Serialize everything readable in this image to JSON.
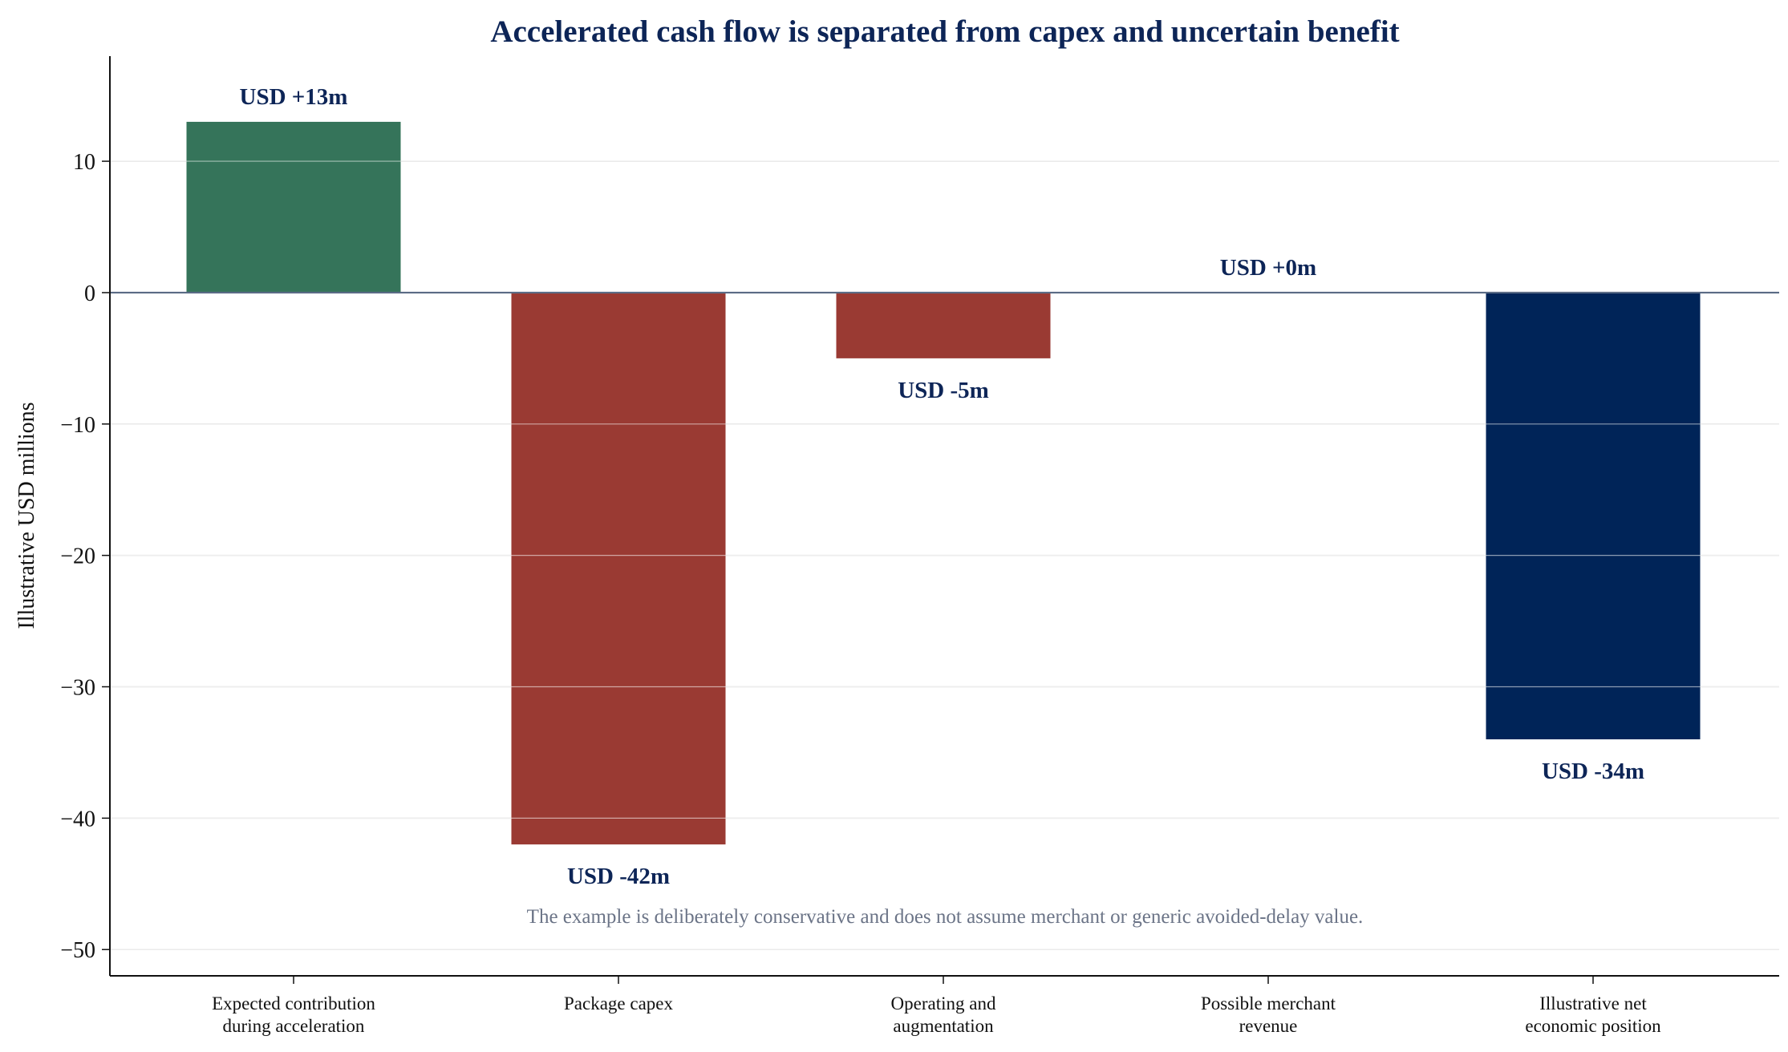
{
  "chart_data": {
    "type": "bar",
    "title": "Accelerated cash flow is separated from capex and uncertain benefit",
    "xlabel": "",
    "ylabel": "Illustrative USD millions",
    "ylim": [
      -52,
      18
    ],
    "yticks": [
      10,
      0,
      -10,
      -20,
      -30,
      -40,
      -50
    ],
    "grid": true,
    "categories": [
      [
        "Expected contribution",
        "during acceleration"
      ],
      [
        "Package capex"
      ],
      [
        "Operating and",
        "augmentation"
      ],
      [
        "Possible merchant",
        "revenue"
      ],
      [
        "Illustrative net",
        "economic position"
      ]
    ],
    "values": [
      13,
      -42,
      -5,
      0,
      -34
    ],
    "data_labels": [
      "USD +13m",
      "USD -42m",
      "USD -5m",
      "USD +0m",
      "USD -34m"
    ],
    "colors": [
      "#35745a",
      "#9a3a33",
      "#9a3a33",
      "#9a3a33",
      "#002458"
    ],
    "annotation": "The example is deliberately conservative and does not assume merchant or generic avoided-delay value."
  }
}
